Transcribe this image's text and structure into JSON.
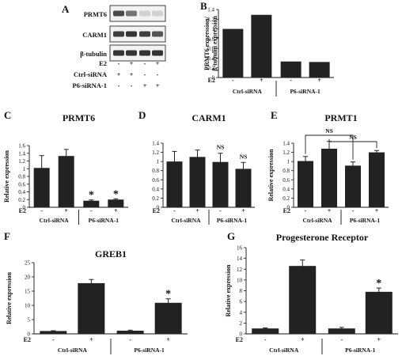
{
  "blot": {
    "panel_label": "A",
    "rows": [
      "PRMT6",
      "CARM1",
      "β-tubulin"
    ],
    "treatment_rows": [
      {
        "label": "E2",
        "signs": [
          "-",
          "+",
          "-",
          "+"
        ]
      },
      {
        "label": "Ctrl-siRNA",
        "signs": [
          "+",
          "+",
          "-",
          "-"
        ]
      },
      {
        "label": "P6-siRNA-1",
        "signs": [
          "-",
          "-",
          "+",
          "+"
        ]
      }
    ],
    "band_intensity": [
      [
        0.75,
        0.55,
        0.12,
        0.12
      ],
      [
        0.8,
        0.85,
        0.8,
        0.7
      ],
      [
        0.85,
        0.85,
        0.85,
        0.85
      ]
    ]
  },
  "chart_data": [
    {
      "type": "bar",
      "panel": "B",
      "title": "",
      "xlabel": "",
      "ylabel": "PRMT6 expression/ β-tubulin expression",
      "ylim": [
        0,
        1.4
      ],
      "yticks": [
        0,
        0.2,
        0.4,
        0.6,
        0.8,
        1,
        1.2,
        1.4
      ],
      "treatment_label": "E2",
      "treatment": [
        "-",
        "+",
        "-",
        "+"
      ],
      "groups": [
        "Ctrl-siRNA",
        "P6-siRNA-1"
      ],
      "values": [
        1.0,
        1.29,
        0.33,
        0.32
      ],
      "errors": [],
      "annotations": []
    },
    {
      "type": "bar",
      "panel": "C",
      "title": "PRMT6",
      "xlabel": "",
      "ylabel": "Relative expression",
      "ylim": [
        0,
        1.6
      ],
      "yticks": [
        0,
        0.2,
        0.4,
        0.6,
        0.8,
        1,
        1.2,
        1.4,
        1.6
      ],
      "treatment_label": "E2",
      "treatment": [
        "-",
        "+",
        "-",
        "+"
      ],
      "groups": [
        "Ctrl-siRNA",
        "P6-siRNA-1"
      ],
      "values": [
        1.02,
        1.33,
        0.17,
        0.2
      ],
      "errors": [
        0.32,
        0.17,
        0.02,
        0.02
      ],
      "annotations": [
        "",
        "",
        "*",
        "*"
      ]
    },
    {
      "type": "bar",
      "panel": "D",
      "title": "CARM1",
      "xlabel": "",
      "ylabel": "",
      "ylim": [
        0,
        1.4
      ],
      "yticks": [
        0,
        0.2,
        0.4,
        0.6,
        0.8,
        1,
        1.2,
        1.4
      ],
      "treatment_label": "E2",
      "treatment": [
        "-",
        "+",
        "-",
        "+"
      ],
      "groups": [
        "Ctrl-siRNA",
        "P6-siRNA-1"
      ],
      "values": [
        1.0,
        1.1,
        0.99,
        0.84
      ],
      "errors": [
        0.22,
        0.15,
        0.19,
        0.14
      ],
      "annotations": [
        "",
        "",
        "NS",
        "NS"
      ]
    },
    {
      "type": "bar",
      "panel": "E",
      "title": "PRMT1",
      "xlabel": "",
      "ylabel": "Relative expression",
      "ylim": [
        0,
        1.4
      ],
      "yticks": [
        0,
        0.2,
        0.4,
        0.6,
        0.8,
        1,
        1.2,
        1.4
      ],
      "treatment_label": "E2",
      "treatment": [
        "-",
        "+",
        "-",
        "+"
      ],
      "groups": [
        "Ctrl-siRNA",
        "P6-siRNA-1"
      ],
      "values": [
        1.01,
        1.28,
        0.91,
        1.2
      ],
      "errors": [
        0.1,
        0.16,
        0.08,
        0.04
      ],
      "annotations": [],
      "brackets": [
        {
          "from": 0,
          "to": 2,
          "label": "NS"
        },
        {
          "from": 1,
          "to": 3,
          "label": "NS"
        }
      ]
    },
    {
      "type": "bar",
      "panel": "F",
      "title": "GREB1",
      "xlabel": "",
      "ylabel": "Relative expression",
      "ylim": [
        0,
        25
      ],
      "yticks": [
        0,
        5,
        10,
        15,
        20,
        25
      ],
      "treatment_label": "E2",
      "treatment": [
        "-",
        "+",
        "-",
        "+"
      ],
      "groups": [
        "Ctrl-siRNA",
        "P6-siRNA-1"
      ],
      "values": [
        1.0,
        17.8,
        1.1,
        10.9
      ],
      "errors": [
        0.1,
        1.3,
        0.2,
        1.4
      ],
      "annotations": [
        "",
        "",
        "",
        "*"
      ]
    },
    {
      "type": "bar",
      "panel": "G",
      "title": "Progesterone Receptor",
      "xlabel": "",
      "ylabel": "Relative expression",
      "ylim": [
        0,
        16
      ],
      "yticks": [
        0,
        2,
        4,
        6,
        8,
        10,
        12,
        14,
        16
      ],
      "treatment_label": "E2",
      "treatment": [
        "-",
        "+",
        "-",
        "+"
      ],
      "groups": [
        "Ctrl-siRNA",
        "P6-siRNA-1"
      ],
      "values": [
        1.0,
        12.6,
        1.0,
        7.8
      ],
      "errors": [
        0.1,
        1.1,
        0.2,
        0.7
      ],
      "annotations": [
        "",
        "",
        "",
        "*"
      ]
    }
  ]
}
